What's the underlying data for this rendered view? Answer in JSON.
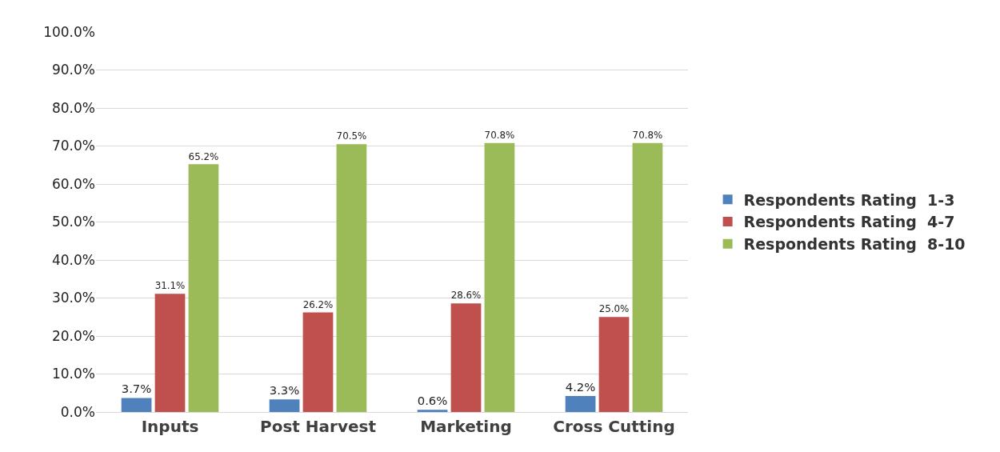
{
  "chart_data": {
    "type": "bar",
    "categories": [
      "Inputs",
      "Post Harvest",
      "Marketing",
      "Cross Cutting"
    ],
    "series": [
      {
        "name": "Respondents Rating  1-3",
        "color": "#4f81bd",
        "values": [
          3.7,
          3.3,
          0.6,
          4.2
        ],
        "value_labels": [
          "3.7%",
          "3.3%",
          "0.6%",
          "4.2%"
        ]
      },
      {
        "name": "Respondents Rating  4-7",
        "color": "#c0504d",
        "values": [
          31.1,
          26.2,
          28.6,
          25.0
        ],
        "value_labels": [
          "31.1%",
          "26.2%",
          "28.6%",
          "25.0%"
        ]
      },
      {
        "name": "Respondents Rating  8-10",
        "color": "#9bbb59",
        "values": [
          65.2,
          70.5,
          70.8,
          70.8
        ],
        "value_labels": [
          "65.2%",
          "70.5%",
          "70.8%",
          "70.8%"
        ]
      }
    ],
    "ylim": [
      0,
      100
    ],
    "yticks": [
      {
        "value": 0,
        "label": "0.0%"
      },
      {
        "value": 10,
        "label": "10.0%"
      },
      {
        "value": 20,
        "label": "20.0%"
      },
      {
        "value": 30,
        "label": "30.0%"
      },
      {
        "value": 40,
        "label": "40.0%"
      },
      {
        "value": 50,
        "label": "50.0%"
      },
      {
        "value": 60,
        "label": "60.0%"
      },
      {
        "value": 70,
        "label": "70.0%"
      },
      {
        "value": 80,
        "label": "80.0%"
      },
      {
        "value": 90,
        "label": "90.0%"
      },
      {
        "value": 100,
        "label": "100.0%"
      }
    ],
    "grid": "y",
    "legend": "right"
  }
}
